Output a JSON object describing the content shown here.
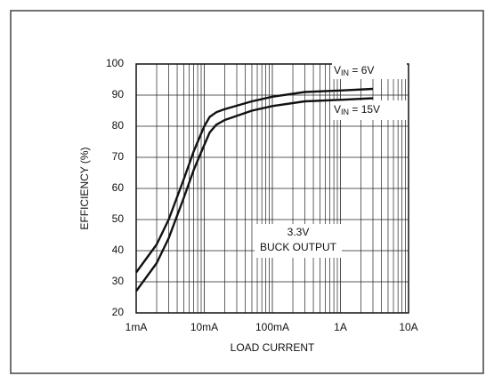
{
  "chart_data": {
    "type": "line",
    "x_label": "LOAD CURRENT",
    "y_label": "EFFICIENCY (%)",
    "xlog": true,
    "grid": true,
    "minor_grid": true,
    "xlim": [
      0.001,
      10
    ],
    "xticks": [
      {
        "value": 0.001,
        "label": "1mA"
      },
      {
        "value": 0.01,
        "label": "10mA"
      },
      {
        "value": 0.1,
        "label": "100mA"
      },
      {
        "value": 1,
        "label": "1A"
      },
      {
        "value": 10,
        "label": "10A"
      }
    ],
    "ylim": [
      20,
      100
    ],
    "yticks": [
      20,
      30,
      40,
      50,
      60,
      70,
      80,
      90,
      100
    ],
    "series": [
      {
        "label": {
          "base": "V",
          "sub": "IN",
          "rest": " = 6V"
        },
        "color": "#111111",
        "x": [
          0.001,
          0.002,
          0.003,
          0.005,
          0.007,
          0.01,
          0.012,
          0.015,
          0.02,
          0.05,
          0.1,
          0.3,
          1,
          3
        ],
        "values": [
          33,
          42,
          50,
          63,
          72,
          80,
          83,
          84.5,
          85.5,
          88,
          89.5,
          91,
          91.5,
          92
        ]
      },
      {
        "label": {
          "base": "V",
          "sub": "IN",
          "rest": " = 15V"
        },
        "color": "#111111",
        "x": [
          0.001,
          0.002,
          0.003,
          0.005,
          0.007,
          0.01,
          0.012,
          0.015,
          0.02,
          0.05,
          0.1,
          0.3,
          1,
          3
        ],
        "values": [
          27,
          36,
          44,
          57,
          66,
          74,
          78,
          80.5,
          82,
          85,
          86.5,
          88,
          88.5,
          89
        ]
      }
    ],
    "annotation": [
      "3.3V",
      "BUCK OUTPUT"
    ]
  }
}
